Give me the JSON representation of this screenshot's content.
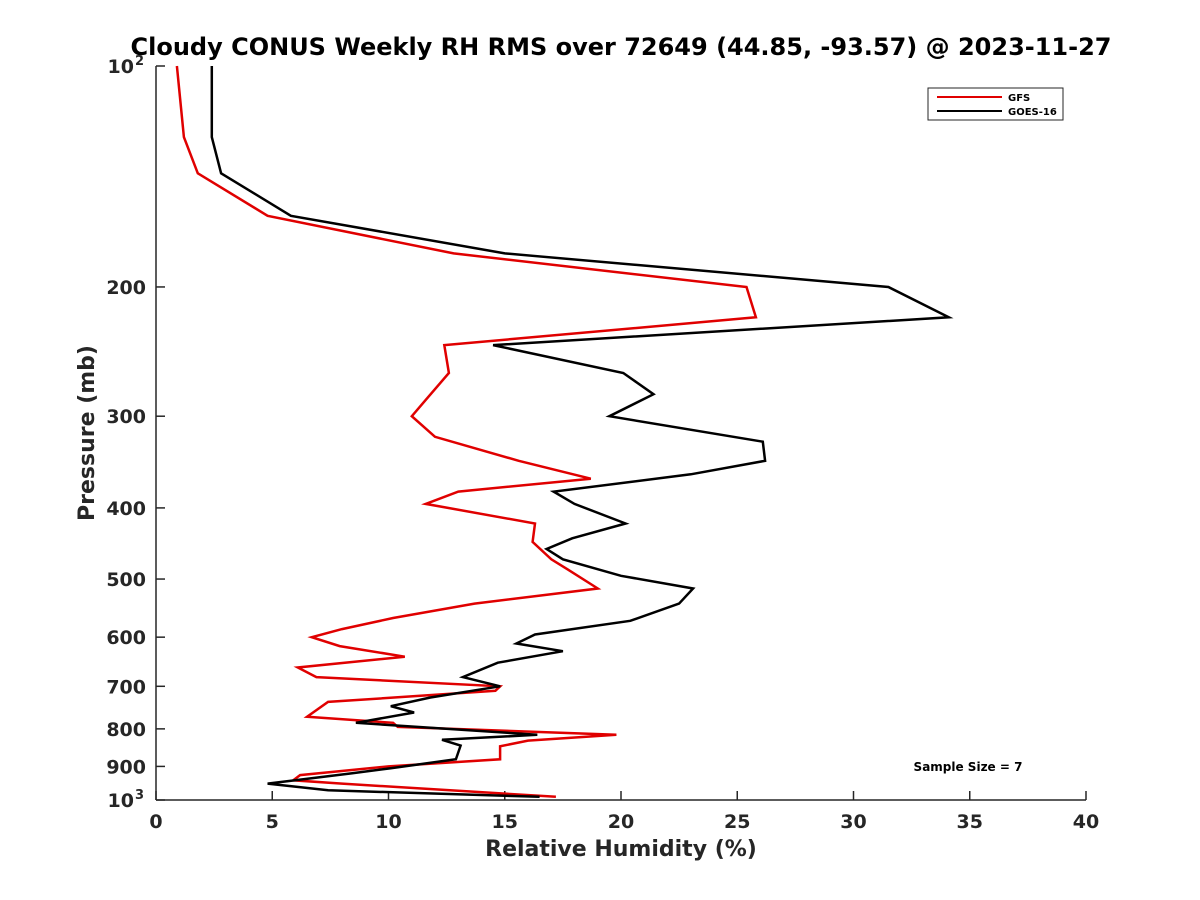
{
  "chart_data": {
    "type": "line",
    "title": "Cloudy CONUS Weekly RH RMS over 72649 (44.85, -93.57) @ 2023-11-27",
    "xlabel": "Relative Humidity (%)",
    "ylabel": "Pressure (mb)",
    "xlim": [
      0,
      40
    ],
    "ylim": [
      100,
      1000
    ],
    "y_scale": "log",
    "y_reversed": true,
    "x_ticks": [
      0,
      5,
      10,
      15,
      20,
      25,
      30,
      35,
      40
    ],
    "y_ticks": [
      {
        "value": 100,
        "label": "10",
        "sup": "2"
      },
      {
        "value": 200,
        "label": "200"
      },
      {
        "value": 300,
        "label": "300"
      },
      {
        "value": 400,
        "label": "400"
      },
      {
        "value": 500,
        "label": "500"
      },
      {
        "value": 600,
        "label": "600"
      },
      {
        "value": 700,
        "label": "700"
      },
      {
        "value": 800,
        "label": "800"
      },
      {
        "value": 900,
        "label": "900"
      },
      {
        "value": 1000,
        "label": "10",
        "sup": "3"
      }
    ],
    "grid": false,
    "legend_position": "top-right",
    "series": [
      {
        "name": "GFS",
        "color": "#e00000",
        "points": [
          [
            0.9,
            100
          ],
          [
            1.2,
            125
          ],
          [
            1.8,
            140
          ],
          [
            4.8,
            160
          ],
          [
            12.8,
            180
          ],
          [
            25.4,
            200
          ],
          [
            25.8,
            220
          ],
          [
            12.4,
            240
          ],
          [
            12.6,
            262
          ],
          [
            11.6,
            285
          ],
          [
            11.0,
            300
          ],
          [
            12.0,
            320
          ],
          [
            15.6,
            345
          ],
          [
            18.7,
            365
          ],
          [
            13.0,
            380
          ],
          [
            11.6,
            395
          ],
          [
            16.3,
            420
          ],
          [
            16.2,
            445
          ],
          [
            17.0,
            470
          ],
          [
            17.7,
            485
          ],
          [
            19.0,
            515
          ],
          [
            13.7,
            540
          ],
          [
            10.2,
            565
          ],
          [
            8.0,
            585
          ],
          [
            6.7,
            600
          ],
          [
            7.9,
            617
          ],
          [
            10.7,
            638
          ],
          [
            6.1,
            660
          ],
          [
            6.9,
            680
          ],
          [
            14.8,
            700
          ],
          [
            14.6,
            710
          ],
          [
            7.4,
            735
          ],
          [
            6.5,
            770
          ],
          [
            10.2,
            785
          ],
          [
            10.4,
            795
          ],
          [
            19.8,
            815
          ],
          [
            16.0,
            830
          ],
          [
            14.8,
            845
          ],
          [
            14.8,
            880
          ],
          [
            10.0,
            900
          ],
          [
            6.2,
            925
          ],
          [
            5.9,
            940
          ],
          [
            8.0,
            950
          ],
          [
            17.2,
            990
          ]
        ]
      },
      {
        "name": "GOES-16",
        "color": "#000000",
        "points": [
          [
            2.4,
            100
          ],
          [
            2.4,
            125
          ],
          [
            2.8,
            140
          ],
          [
            5.8,
            160
          ],
          [
            15.0,
            180
          ],
          [
            31.5,
            200
          ],
          [
            34.1,
            220
          ],
          [
            14.5,
            240
          ],
          [
            20.1,
            262
          ],
          [
            21.4,
            280
          ],
          [
            19.5,
            300
          ],
          [
            26.1,
            325
          ],
          [
            26.2,
            345
          ],
          [
            23.0,
            360
          ],
          [
            17.1,
            380
          ],
          [
            18.0,
            395
          ],
          [
            20.2,
            420
          ],
          [
            17.9,
            440
          ],
          [
            16.8,
            455
          ],
          [
            17.5,
            470
          ],
          [
            20.0,
            495
          ],
          [
            23.1,
            515
          ],
          [
            22.5,
            540
          ],
          [
            20.4,
            570
          ],
          [
            16.3,
            595
          ],
          [
            15.5,
            612
          ],
          [
            17.5,
            627
          ],
          [
            14.7,
            650
          ],
          [
            13.2,
            680
          ],
          [
            14.8,
            700
          ],
          [
            11.8,
            725
          ],
          [
            10.1,
            745
          ],
          [
            11.1,
            760
          ],
          [
            8.6,
            785
          ],
          [
            16.4,
            815
          ],
          [
            12.3,
            828
          ],
          [
            13.1,
            843
          ],
          [
            12.9,
            880
          ],
          [
            10.1,
            905
          ],
          [
            8.4,
            920
          ],
          [
            4.8,
            950
          ],
          [
            7.4,
            970
          ],
          [
            16.5,
            990
          ]
        ]
      }
    ],
    "annotation": "Sample Size = 7"
  }
}
